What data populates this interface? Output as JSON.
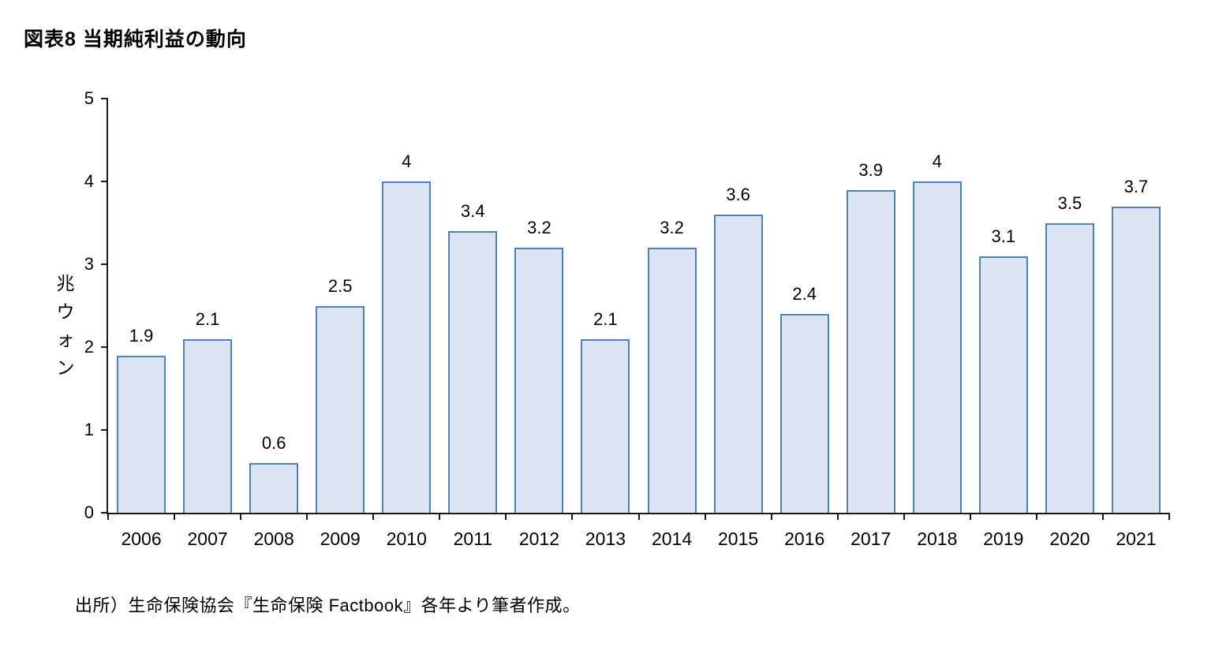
{
  "page": {
    "title": "図表8 当期純利益の動向",
    "source": "出所）生命保険協会『生命保険 Factbook』各年より筆者作成。"
  },
  "chart_data": {
    "type": "bar",
    "title": "図表8 当期純利益の動向",
    "categories": [
      "2006",
      "2007",
      "2008",
      "2009",
      "2010",
      "2011",
      "2012",
      "2013",
      "2014",
      "2015",
      "2016",
      "2017",
      "2018",
      "2019",
      "2020",
      "2021"
    ],
    "values": [
      1.9,
      2.1,
      0.6,
      2.5,
      4,
      3.4,
      3.2,
      2.1,
      3.2,
      3.6,
      2.4,
      3.9,
      4,
      3.1,
      3.5,
      3.7
    ],
    "ylabel": "兆ウォン",
    "xlabel": "",
    "ylim": [
      0,
      5
    ],
    "yticks": [
      0,
      1,
      2,
      3,
      4,
      5
    ],
    "grid": false,
    "legend_position": "none",
    "data_labels": true,
    "bar_fill": "#dbe5f1",
    "bar_border": "#4f81bd",
    "source_note": "出所）生命保険協会『生命保険 Factbook』各年より筆者作成。"
  }
}
